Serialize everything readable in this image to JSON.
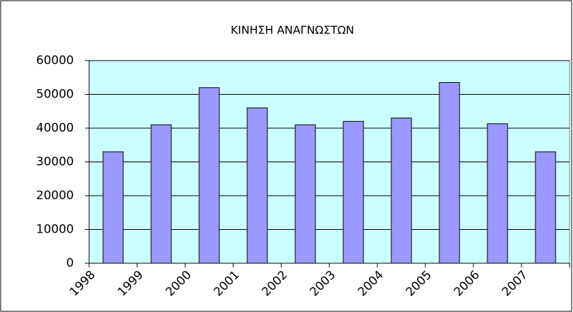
{
  "chart_data": {
    "type": "bar",
    "title": "ΚΙΝΗΣΗ ΑΝΑΓΝΩΣΤΩΝ",
    "categories": [
      "1998",
      "1999",
      "2000",
      "2001",
      "2002",
      "2003",
      "2004",
      "2005",
      "2006",
      "2007"
    ],
    "values": [
      33000,
      41000,
      52000,
      46000,
      41000,
      42000,
      43000,
      53500,
      41300,
      33000
    ],
    "color": "#9999ff",
    "background": "#ccffff",
    "ylim": [
      0,
      60000
    ],
    "yticks": [
      0,
      10000,
      20000,
      30000,
      40000,
      50000,
      60000
    ],
    "grid": true
  }
}
